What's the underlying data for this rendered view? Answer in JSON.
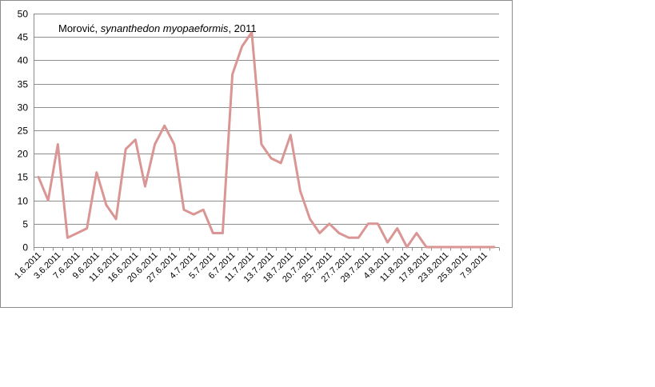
{
  "chart_data": {
    "type": "line",
    "title_parts": [
      {
        "text": "Morović, ",
        "italic": false
      },
      {
        "text": "synanthedon myopaeformis",
        "italic": true
      },
      {
        "text": ", 2011",
        "italic": false
      }
    ],
    "xlabel": "",
    "ylabel": "",
    "ylim": [
      0,
      50
    ],
    "yticks": [
      0,
      5,
      10,
      15,
      20,
      25,
      30,
      35,
      40,
      45,
      50
    ],
    "grid": true,
    "legend": "none",
    "line_color": "#d99694",
    "x_tick_labels": [
      "1.6.2011",
      "3.6.2011",
      "7.6.2011",
      "9.6.2011",
      "11.6.2011",
      "16.6.2011",
      "20.6.2011",
      "27.6.2011",
      "4.7.2011",
      "5.7.2011",
      "6.7.2011",
      "11.7.2011",
      "13.7.2011",
      "18.7.2011",
      "20.7.2011",
      "25.7.2011",
      "27.7.2011",
      "29.7.2011",
      "4.8.2011",
      "11.8.2011",
      "17.8.2011",
      "23.8.2011",
      "25.8.2011",
      "7.9.2011"
    ],
    "values": [
      15,
      10,
      22,
      2,
      3,
      4,
      16,
      9,
      6,
      21,
      23,
      13,
      22,
      26,
      22,
      8,
      7,
      8,
      3,
      3,
      37,
      43,
      46,
      22,
      19,
      18,
      24,
      12,
      6,
      3,
      5,
      3,
      2,
      2,
      5,
      5,
      1,
      4,
      0,
      3,
      0,
      0,
      0,
      0,
      0,
      0,
      0,
      0
    ]
  }
}
